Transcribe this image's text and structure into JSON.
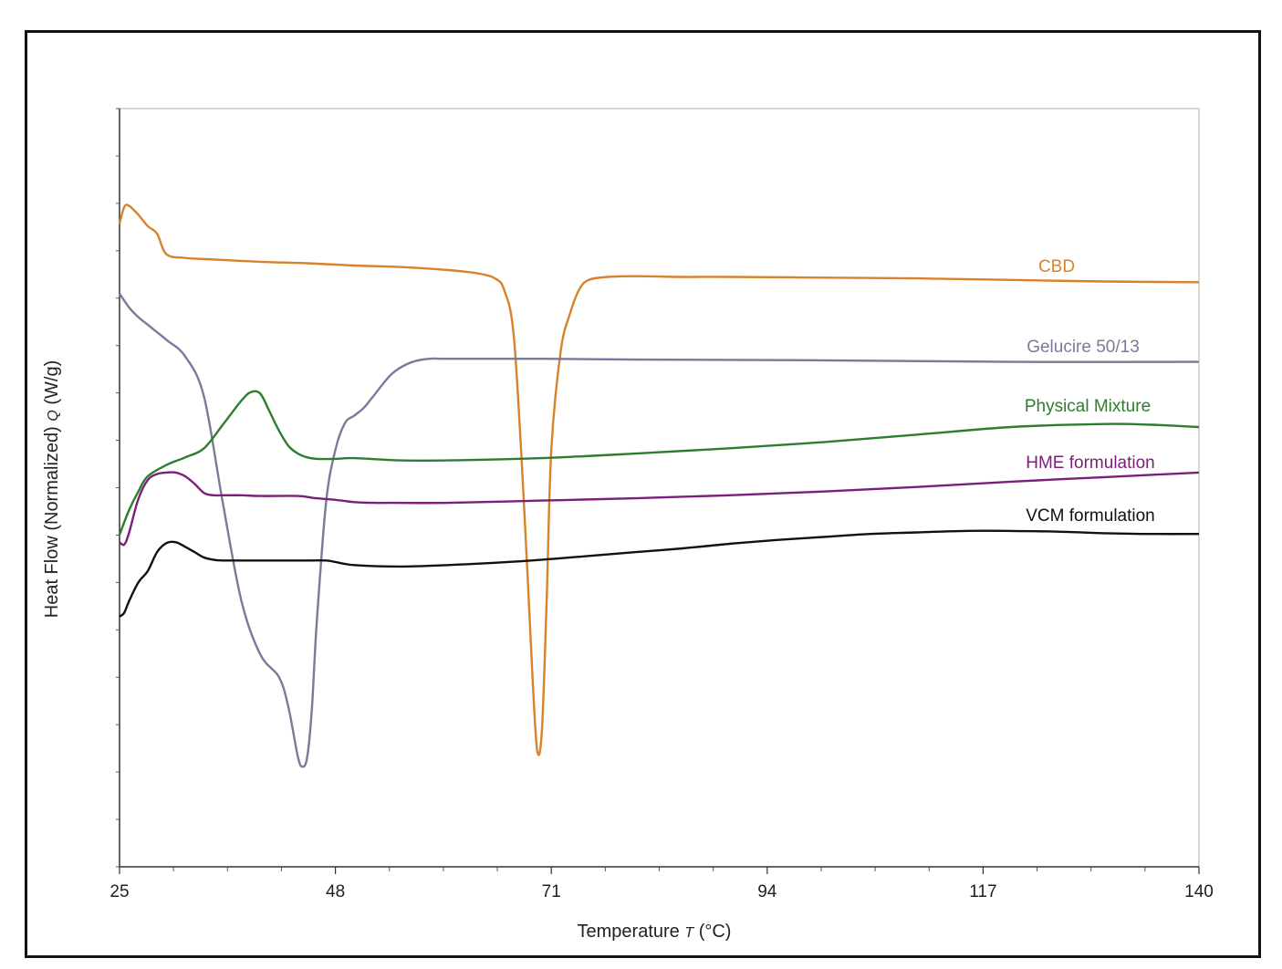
{
  "chart_data": {
    "type": "line",
    "title": "",
    "xlabel": "Temperature T (°C)",
    "xlabel_parts": {
      "prefix": "Temperature ",
      "symbol": "T",
      "suffix": " (°C)"
    },
    "ylabel": "Heat Flow (Normalized) Q (W/g)",
    "ylabel_parts": {
      "prefix": "Heat Flow (Normalized) ",
      "symbol": "Q",
      "suffix": " (W/g)"
    },
    "xlim": [
      25,
      140
    ],
    "xticks": [
      25,
      48,
      71,
      94,
      117,
      140
    ],
    "ylim": [
      0,
      100
    ],
    "y_tick_labels": "none",
    "grid": false,
    "legend": "inline labels at right end of curves",
    "series": [
      {
        "name": "CBD",
        "color": "#d9822b",
        "x": [
          25,
          25.5,
          26,
          27,
          28,
          29,
          30,
          32,
          35,
          40,
          45,
          50,
          55,
          60,
          63,
          65,
          66,
          67,
          68,
          69,
          69.5,
          70,
          70.5,
          71,
          72,
          73,
          74,
          75,
          77,
          80,
          85,
          90,
          100,
          110,
          120,
          130,
          140
        ],
        "y": [
          84.8,
          87.0,
          87.2,
          86.0,
          84.5,
          83.5,
          80.8,
          80.3,
          80.1,
          79.8,
          79.6,
          79.3,
          79.1,
          78.7,
          78.3,
          77.6,
          76.0,
          70.0,
          50.0,
          25.0,
          15.3,
          18.0,
          35.0,
          55.0,
          68.0,
          73.0,
          76.2,
          77.4,
          77.8,
          77.9,
          77.8,
          77.8,
          77.7,
          77.6,
          77.4,
          77.2,
          77.1
        ]
      },
      {
        "name": "Gelucire 50/13",
        "color": "#7a7a9a",
        "x": [
          25,
          26,
          27,
          28,
          29,
          30,
          32,
          34,
          36,
          38,
          40,
          42,
          43,
          44,
          44.5,
          45,
          45.5,
          46,
          47,
          48,
          49,
          50,
          51,
          52,
          54,
          56,
          58,
          60,
          70,
          80,
          100,
          120,
          140
        ],
        "y": [
          75.6,
          73.8,
          72.5,
          71.5,
          70.5,
          69.5,
          67.3,
          62.0,
          48.0,
          35.0,
          28.0,
          25.0,
          21.0,
          14.5,
          13.2,
          14.5,
          21.0,
          32.0,
          48.0,
          55.0,
          58.5,
          59.5,
          60.5,
          62.0,
          65.0,
          66.5,
          67.0,
          67.0,
          67.0,
          66.9,
          66.8,
          66.6,
          66.6
        ]
      },
      {
        "name": "Physical Mixture",
        "color": "#2e7d2e",
        "x": [
          25,
          26,
          27,
          28,
          30,
          32,
          34,
          36,
          38,
          39,
          40,
          41,
          42,
          43,
          44,
          45,
          46,
          48,
          50,
          55,
          60,
          70,
          80,
          90,
          100,
          110,
          120,
          130,
          135,
          140
        ],
        "y": [
          43.8,
          47.0,
          49.5,
          51.5,
          53.0,
          54.0,
          55.2,
          58.3,
          61.5,
          62.6,
          62.4,
          60.0,
          57.5,
          55.5,
          54.5,
          54.0,
          53.8,
          53.8,
          53.9,
          53.6,
          53.6,
          53.9,
          54.5,
          55.2,
          56.0,
          57.0,
          58.0,
          58.4,
          58.3,
          58.0
        ]
      },
      {
        "name": "HME formulation",
        "color": "#7b1f7b",
        "x": [
          25,
          25.5,
          26,
          27,
          28,
          29,
          30,
          31,
          32,
          33,
          34,
          35,
          36,
          38,
          40,
          44,
          46,
          48,
          50,
          52,
          54,
          60,
          70,
          80,
          90,
          100,
          110,
          120,
          130,
          140
        ],
        "y": [
          42.8,
          42.5,
          44.0,
          48.5,
          51.0,
          51.8,
          52.0,
          52.0,
          51.5,
          50.5,
          49.3,
          49.0,
          49.0,
          49.0,
          48.9,
          48.9,
          48.6,
          48.4,
          48.1,
          48.0,
          48.0,
          48.0,
          48.3,
          48.6,
          49.0,
          49.5,
          50.1,
          50.8,
          51.4,
          52.0
        ]
      },
      {
        "name": "VCM formulation",
        "color": "#111111",
        "x": [
          25,
          25.5,
          26,
          27,
          28,
          29,
          30,
          31,
          32,
          33,
          34,
          35,
          36,
          40,
          45,
          47,
          48,
          50,
          55,
          60,
          65,
          70,
          75,
          80,
          85,
          90,
          95,
          100,
          105,
          110,
          115,
          120,
          125,
          130,
          135,
          140
        ],
        "y": [
          33.0,
          33.5,
          35.0,
          37.5,
          39.0,
          41.5,
          42.7,
          42.8,
          42.2,
          41.5,
          40.8,
          40.5,
          40.4,
          40.4,
          40.4,
          40.4,
          40.2,
          39.8,
          39.6,
          39.8,
          40.1,
          40.5,
          41.0,
          41.5,
          42.0,
          42.6,
          43.1,
          43.5,
          43.9,
          44.1,
          44.3,
          44.3,
          44.2,
          44.0,
          43.9,
          43.9
        ]
      }
    ]
  }
}
